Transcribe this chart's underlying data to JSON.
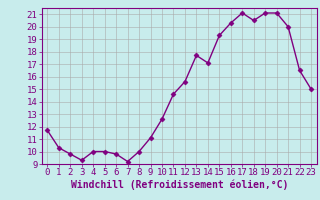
{
  "x": [
    0,
    1,
    2,
    3,
    4,
    5,
    6,
    7,
    8,
    9,
    10,
    11,
    12,
    13,
    14,
    15,
    16,
    17,
    18,
    19,
    20,
    21,
    22,
    23
  ],
  "y": [
    11.7,
    10.3,
    9.8,
    9.3,
    10.0,
    10.0,
    9.8,
    9.2,
    10.0,
    11.1,
    12.6,
    14.6,
    15.6,
    17.7,
    17.1,
    19.3,
    20.3,
    21.1,
    20.5,
    21.1,
    21.1,
    20.0,
    16.5,
    15.0
  ],
  "line_color": "#800080",
  "marker": "D",
  "marker_size": 2.5,
  "line_width": 1.0,
  "bg_color": "#c8ecec",
  "grid_color": "#aaaaaa",
  "xlabel": "Windchill (Refroidissement éolien,°C)",
  "xlabel_fontsize": 7,
  "tick_fontsize": 6.5,
  "ylim": [
    9,
    21.5
  ],
  "xlim": [
    -0.5,
    23.5
  ],
  "yticks": [
    9,
    10,
    11,
    12,
    13,
    14,
    15,
    16,
    17,
    18,
    19,
    20,
    21
  ],
  "xticks": [
    0,
    1,
    2,
    3,
    4,
    5,
    6,
    7,
    8,
    9,
    10,
    11,
    12,
    13,
    14,
    15,
    16,
    17,
    18,
    19,
    20,
    21,
    22,
    23
  ]
}
